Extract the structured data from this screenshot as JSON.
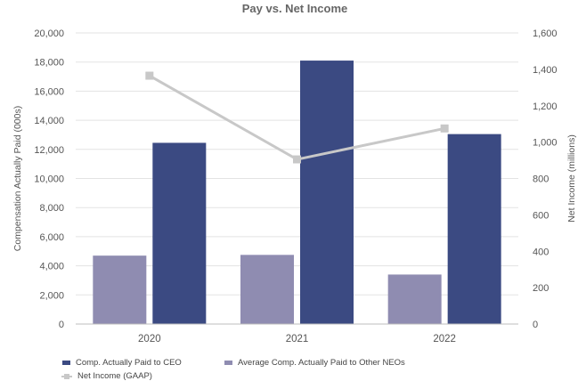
{
  "chart_data": {
    "type": "bar",
    "title": "Pay vs. Net Income",
    "categories": [
      "2020",
      "2021",
      "2022"
    ],
    "series": [
      {
        "name": "Average Comp. Actually Paid to Other NEOs",
        "type": "bar",
        "axis": "left",
        "color": "#8f8cb1",
        "values": [
          4700,
          4750,
          3400
        ]
      },
      {
        "name": "Comp. Actually Paid to CEO",
        "type": "bar",
        "axis": "left",
        "color": "#3b4a82",
        "values": [
          12450,
          18100,
          13050
        ]
      },
      {
        "name": "Net Income (GAAP)",
        "type": "line",
        "axis": "right",
        "color": "#c8c8c8",
        "values": [
          1365,
          905,
          1075
        ]
      }
    ],
    "ylabel": "Compensation Actually Paid (000s)",
    "y2label": "Net Income (millions)",
    "ylim": [
      0,
      20000
    ],
    "y2lim": [
      0,
      1600
    ],
    "yticks": [
      "0",
      "2,000",
      "4,000",
      "6,000",
      "8,000",
      "10,000",
      "12,000",
      "14,000",
      "16,000",
      "18,000",
      "20,000"
    ],
    "y2ticks": [
      "0",
      "200",
      "400",
      "600",
      "800",
      "1,000",
      "1,200",
      "1,400",
      "1,600"
    ],
    "grid": true,
    "legend": [
      {
        "label": "Comp. Actually Paid to CEO",
        "color": "#3b4a82",
        "kind": "bar"
      },
      {
        "label": "Average Comp. Actually Paid to Other NEOs",
        "color": "#8f8cb1",
        "kind": "bar"
      },
      {
        "label": "Net Income (GAAP)",
        "color": "#c8c8c8",
        "kind": "line"
      }
    ],
    "legend_position": "bottom-left"
  }
}
